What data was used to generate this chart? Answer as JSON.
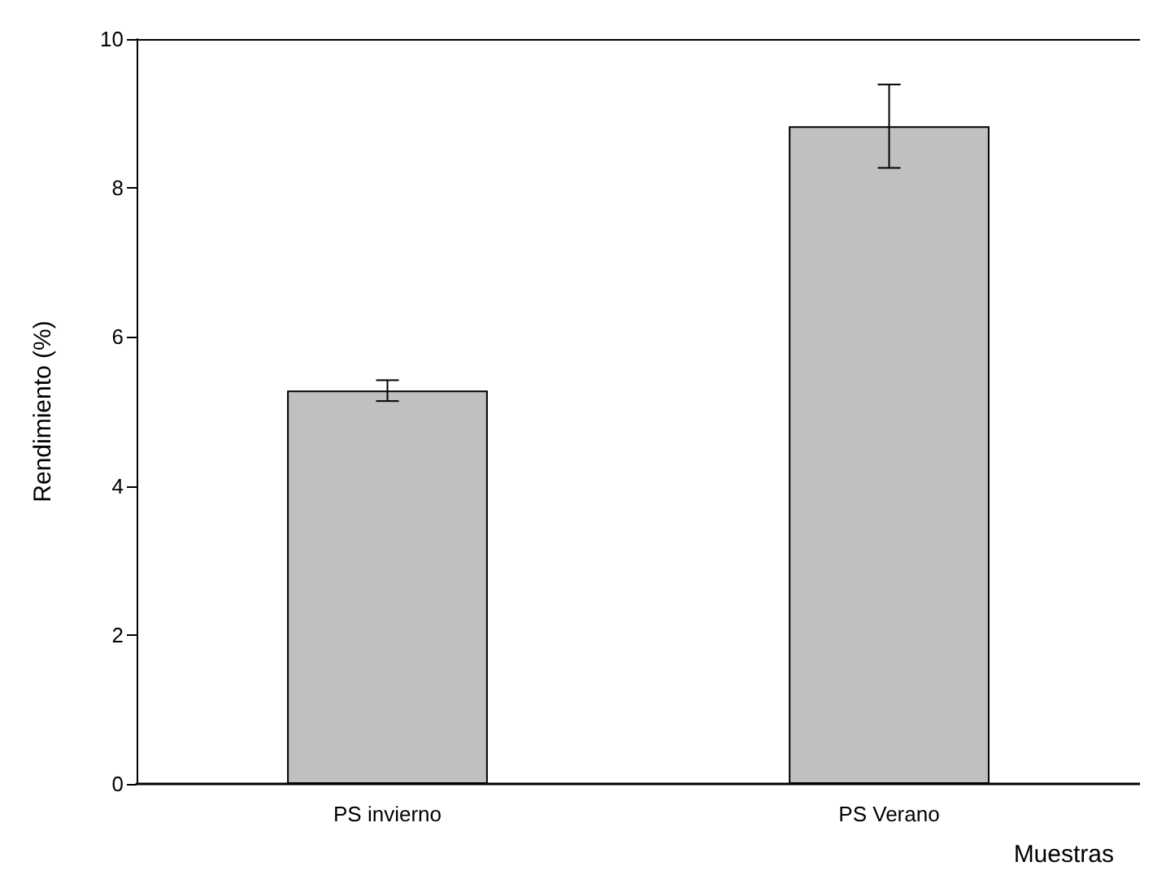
{
  "chart_data": {
    "type": "bar",
    "xlabel": "Muestras",
    "ylabel": "Rendimiento (%)",
    "categories": [
      "PS invierno",
      "PS Verano"
    ],
    "values": [
      5.28,
      8.83
    ],
    "errors": [
      0.14,
      0.56
    ],
    "color": "#c0c0c0",
    "ylim": [
      0,
      10
    ],
    "yticks": [
      0,
      2,
      4,
      6,
      8,
      10
    ],
    "grid": false
  }
}
